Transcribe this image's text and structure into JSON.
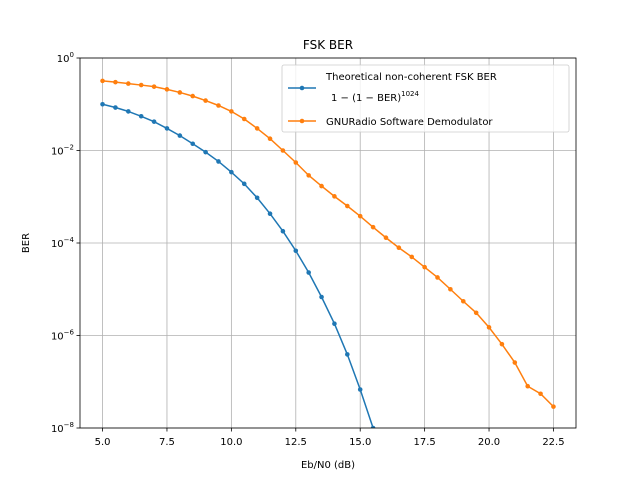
{
  "chart_data": {
    "type": "line",
    "title": "FSK BER",
    "xlabel": "Eb/N0 (dB)",
    "ylabel": "BER",
    "xlim": [
      4.125,
      23.375
    ],
    "ylim": [
      1e-08,
      1
    ],
    "yscale": "log",
    "grid": true,
    "legend_position": "top-right",
    "x_ticks": [
      5.0,
      7.5,
      10.0,
      12.5,
      15.0,
      17.5,
      20.0,
      22.5
    ],
    "x_tick_labels": [
      "5.0",
      "7.5",
      "10.0",
      "12.5",
      "15.0",
      "17.5",
      "20.0",
      "22.5"
    ],
    "y_ticks": [
      1e-08,
      1e-06,
      0.0001,
      0.01,
      1
    ],
    "y_tick_labels": [
      {
        "base": "10",
        "exp": "−8"
      },
      {
        "base": "10",
        "exp": "−6"
      },
      {
        "base": "10",
        "exp": "−4"
      },
      {
        "base": "10",
        "exp": "−2"
      },
      {
        "base": "10",
        "exp": "0"
      }
    ],
    "series": [
      {
        "name": "Theoretical non-coherent FSK BER",
        "name_line2": "1 − (1 − BER)",
        "name_line2_exp": "1024",
        "color": "#1f77b4",
        "x": [
          5.0,
          5.5,
          6.0,
          6.5,
          7.0,
          7.5,
          8.0,
          8.5,
          9.0,
          9.5,
          10.0,
          10.5,
          11.0,
          11.5,
          12.0,
          12.5,
          13.0,
          13.5,
          14.0,
          14.5,
          15.0,
          15.5
        ],
        "y": [
          0.1,
          0.085,
          0.07,
          0.055,
          0.042,
          0.03,
          0.021,
          0.014,
          0.0092,
          0.0058,
          0.0034,
          0.0019,
          0.00095,
          0.00043,
          0.00018,
          6.8e-05,
          2.3e-05,
          6.8e-06,
          1.8e-06,
          3.9e-07,
          6.8e-08,
          1e-08
        ]
      },
      {
        "name": "GNURadio Software Demodulator",
        "color": "#ff7f0e",
        "x": [
          5.0,
          5.5,
          6.0,
          6.5,
          7.0,
          7.5,
          8.0,
          8.5,
          9.0,
          9.5,
          10.0,
          10.5,
          11.0,
          11.5,
          12.0,
          12.5,
          13.0,
          13.5,
          14.0,
          14.5,
          15.0,
          15.5,
          16.0,
          16.5,
          17.0,
          17.5,
          18.0,
          18.5,
          19.0,
          19.5,
          20.0,
          20.5,
          21.0,
          21.5,
          22.0,
          22.5
        ],
        "y": [
          0.32,
          0.3,
          0.28,
          0.26,
          0.24,
          0.21,
          0.18,
          0.15,
          0.12,
          0.094,
          0.07,
          0.048,
          0.03,
          0.018,
          0.01,
          0.0055,
          0.0029,
          0.0017,
          0.00102,
          0.00063,
          0.00038,
          0.00022,
          0.00013,
          7.9e-05,
          5e-05,
          3e-05,
          1.8e-05,
          1e-05,
          5.5e-06,
          3.1e-06,
          1.5e-06,
          6.5e-07,
          2.6e-07,
          8e-08,
          5.5e-08,
          2.9e-08
        ]
      }
    ]
  }
}
